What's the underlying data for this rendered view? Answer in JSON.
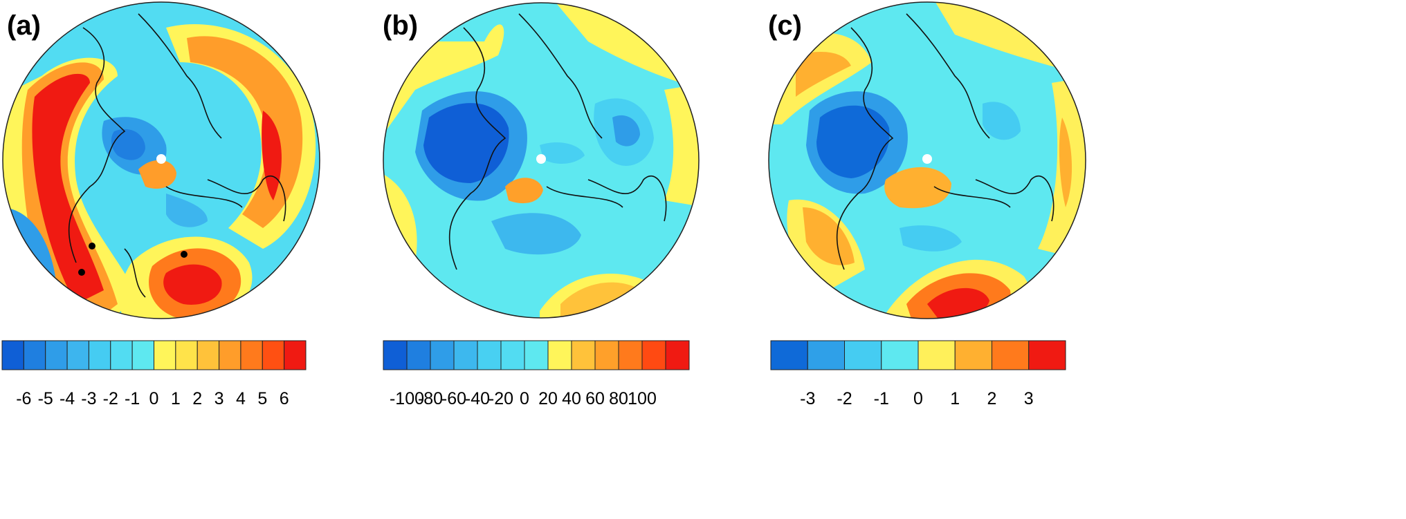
{
  "panels": [
    {
      "label": "(a)",
      "colorbar": {
        "colors": [
          "#0f5fd6",
          "#1f7fe0",
          "#2f9de8",
          "#3db5ee",
          "#45ccf2",
          "#52dcf2",
          "#5ee8f0",
          "#fff55a",
          "#ffe34a",
          "#ffc23a",
          "#ff9d2a",
          "#ff7a1c",
          "#ff5012",
          "#f01a12"
        ],
        "ticks": [
          -6,
          -5,
          -4,
          -3,
          -2,
          -1,
          0,
          1,
          2,
          3,
          4,
          5,
          6
        ]
      }
    },
    {
      "label": "(b)",
      "colorbar": {
        "colors": [
          "#0f5fd6",
          "#1f7fe0",
          "#2f9de8",
          "#3db8ee",
          "#48d0f2",
          "#52dcf2",
          "#5ee8f0",
          "#fff55a",
          "#ffc23a",
          "#ffa02a",
          "#ff7a1c",
          "#ff4a12",
          "#f01a12"
        ],
        "ticks": [
          -100,
          -80,
          -60,
          -40,
          -20,
          0,
          20,
          40,
          60,
          80,
          100
        ]
      }
    },
    {
      "label": "(c)",
      "colorbar": {
        "colors": [
          "#0f6ad8",
          "#2fa0e8",
          "#45ccf2",
          "#5ee8f0",
          "#fff05a",
          "#ffb030",
          "#ff7a1c",
          "#f01a12"
        ],
        "ticks": [
          -3,
          -2,
          -1,
          0,
          1,
          2,
          3
        ]
      }
    }
  ]
}
